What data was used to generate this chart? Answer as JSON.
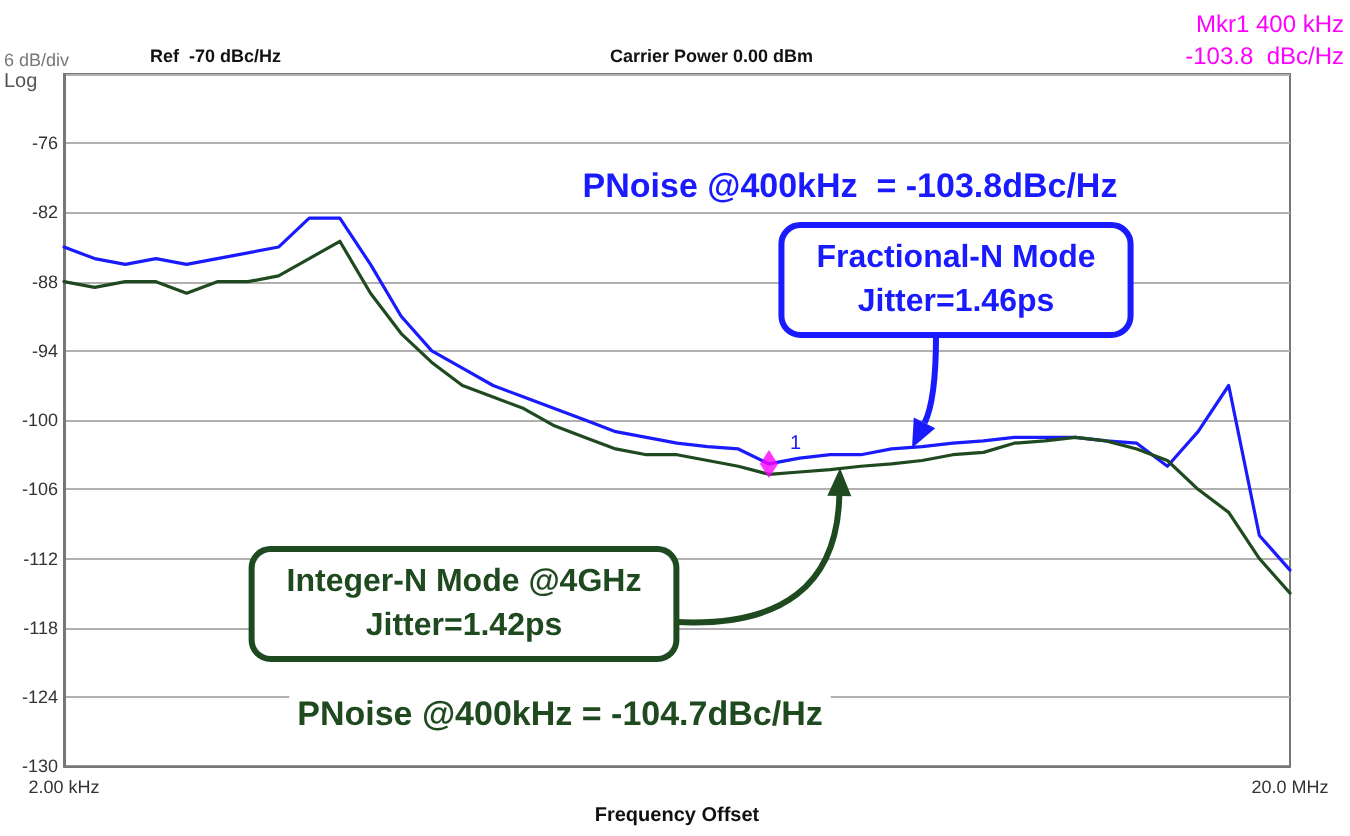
{
  "chart_data": {
    "type": "line",
    "xlabel": "Frequency Offset",
    "grid": "y",
    "categories": [
      "2.00 kHz",
      null,
      null,
      null,
      null,
      null,
      null,
      null,
      null,
      null,
      null,
      null,
      null,
      null,
      null,
      null,
      null,
      null,
      null,
      null,
      null,
      null,
      null,
      null,
      null,
      null,
      null,
      null,
      null,
      null,
      null,
      null,
      null,
      null,
      null,
      null,
      null,
      null,
      null,
      null,
      "20.0 MHz"
    ],
    "ylim": [
      -130,
      -70
    ],
    "yticks": [
      {
        "value": -70,
        "label": null
      },
      -76,
      -82,
      -88,
      -94,
      -100,
      -106,
      -112,
      -118,
      -124,
      -130
    ],
    "marker": "none",
    "line_style": "solid",
    "series": [
      {
        "color": "#1a1aff",
        "values": [
          -85,
          -86,
          -86.5,
          -86,
          -86.5,
          -86,
          -85.5,
          -85,
          -82.5,
          -82.5,
          -86.5,
          -91,
          -94,
          -95.5,
          -97,
          -98,
          -99,
          -100,
          -101,
          -101.5,
          -102,
          -102.3,
          -102.5,
          -103.8,
          -103.3,
          -103,
          -103,
          -102.5,
          -102.3,
          -102,
          -101.8,
          -101.5,
          -101.5,
          -101.5,
          -101.8,
          -102,
          -104,
          -101,
          -97,
          -110,
          -113
        ]
      },
      {
        "color": "#1f4a1f",
        "values": [
          -88,
          -88.5,
          -88,
          -88,
          -89,
          -88,
          -88,
          -87.5,
          -86,
          -84.5,
          -89,
          -92.5,
          -95,
          -97,
          -98,
          -99,
          -100.5,
          -101.5,
          -102.5,
          -103,
          -103,
          -103.5,
          -104,
          -104.7,
          -104.5,
          -104.3,
          -104,
          -103.8,
          -103.5,
          -103,
          -102.8,
          -102,
          -101.8,
          -101.5,
          -101.8,
          -102.5,
          -103.5,
          -106,
          -108,
          -112,
          -115
        ]
      },
      {
        "type": "scatter",
        "color": "#ff00ff",
        "marker": "diamond",
        "values": [
          null,
          null,
          null,
          null,
          null,
          null,
          null,
          null,
          null,
          null,
          null,
          null,
          null,
          null,
          null,
          null,
          null,
          null,
          null,
          null,
          null,
          null,
          null,
          -103.8,
          null,
          null,
          null,
          null,
          null,
          null,
          null,
          null,
          null,
          null,
          null,
          null,
          null,
          null,
          null,
          null,
          null
        ]
      }
    ],
    "annotations": [
      "6 dB/div",
      "Log",
      "Ref  -70 dBc/Hz",
      "Carrier Power 0.00 dBm",
      "Mkr1 400 kHz",
      "-103.8  dBc/Hz",
      "PNoise @400kHz  = -103.8dBc/Hz",
      "Fractional-N Mode\nJitter=1.46ps",
      "Integer-N Mode @4GHz\nJitter=1.42ps",
      "PNoise @400kHz = -104.7dBc/Hz",
      "1"
    ]
  }
}
